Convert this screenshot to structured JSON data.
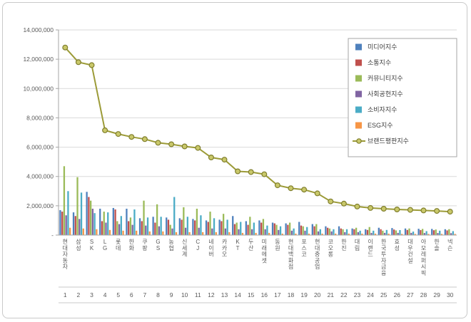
{
  "window": {
    "background": "#ffffff",
    "border_color": "#c9c9c9"
  },
  "chart_data": {
    "type": "bar+line",
    "title": "",
    "xlabel": "",
    "ylabel": "",
    "ylim": [
      0,
      14000000
    ],
    "ytick_step": 2000000,
    "zero_label": "-",
    "grid": true,
    "legend_position": "top-right",
    "axis_text_color": "#595959",
    "grid_color": "#d9d9d9",
    "axis_line_color": "#a6a6a6",
    "categories": [
      "현대자동차",
      "삼성",
      "SK",
      "LG",
      "롯데",
      "한화",
      "쿠팡",
      "GS",
      "농협",
      "신세계",
      "CJ",
      "네이버",
      "카카오",
      "KT",
      "두산",
      "미래에셋",
      "동원",
      "현대백화점",
      "포스코",
      "현대중공업",
      "코오롱",
      "한진",
      "대림",
      "이랜드",
      "한국투자금융",
      "효성",
      "대우건설",
      "아모레퍼시픽",
      "한솔",
      "넥슨"
    ],
    "ranks": [
      1,
      2,
      3,
      4,
      5,
      6,
      7,
      8,
      9,
      10,
      11,
      12,
      13,
      14,
      15,
      16,
      17,
      18,
      19,
      20,
      21,
      22,
      23,
      24,
      25,
      26,
      27,
      28,
      29,
      30
    ],
    "series": [
      {
        "name": "미디어지수",
        "color": "#4F81BD",
        "values": [
          1700000,
          1550000,
          2950000,
          1800000,
          1850000,
          1800000,
          1150000,
          1250000,
          1200000,
          1150000,
          1100000,
          1000000,
          1050000,
          1300000,
          950000,
          1000000,
          850000,
          800000,
          900000,
          750000,
          600000,
          600000,
          450000,
          400000,
          500000,
          480000,
          450000,
          430000,
          420000,
          400000
        ]
      },
      {
        "name": "소통지수",
        "color": "#C0504D",
        "values": [
          1600000,
          1300000,
          2600000,
          950000,
          1750000,
          950000,
          950000,
          850000,
          1050000,
          1050000,
          1000000,
          900000,
          950000,
          750000,
          700000,
          850000,
          800000,
          700000,
          650000,
          600000,
          500000,
          450000,
          400000,
          350000,
          400000,
          380000,
          350000,
          340000,
          330000,
          320000
        ]
      },
      {
        "name": "커뮤니티지수",
        "color": "#9BBB59",
        "values": [
          4700000,
          3950000,
          2350000,
          1600000,
          950000,
          1200000,
          2350000,
          2100000,
          700000,
          1900000,
          1800000,
          1600000,
          1450000,
          850000,
          1250000,
          1100000,
          700000,
          850000,
          600000,
          750000,
          450000,
          400000,
          500000,
          550000,
          300000,
          320000,
          450000,
          420000,
          380000,
          400000
        ]
      },
      {
        "name": "사회공헌지수",
        "color": "#8064A2",
        "values": [
          1350000,
          1100000,
          1800000,
          850000,
          750000,
          700000,
          650000,
          600000,
          450000,
          500000,
          500000,
          450000,
          450000,
          400000,
          400000,
          400000,
          350000,
          300000,
          300000,
          250000,
          250000,
          200000,
          200000,
          150000,
          150000,
          150000,
          150000,
          140000,
          140000,
          130000
        ]
      },
      {
        "name": "소비자지수",
        "color": "#4BACC6",
        "values": [
          3000000,
          2900000,
          1500000,
          1550000,
          1300000,
          1750000,
          1200000,
          1250000,
          2600000,
          1250000,
          1350000,
          1150000,
          1050000,
          900000,
          850000,
          650000,
          600000,
          450000,
          550000,
          400000,
          400000,
          400000,
          300000,
          300000,
          350000,
          340000,
          240000,
          270000,
          300000,
          270000
        ]
      },
      {
        "name": "ESG지수",
        "color": "#F79646",
        "values": [
          500000,
          450000,
          400000,
          350000,
          300000,
          300000,
          250000,
          250000,
          200000,
          200000,
          200000,
          200000,
          200000,
          150000,
          150000,
          150000,
          100000,
          100000,
          100000,
          100000,
          100000,
          100000,
          100000,
          100000,
          100000,
          80000,
          80000,
          80000,
          80000,
          80000
        ]
      }
    ],
    "line_series": {
      "name": "브랜드평판지수",
      "color": "#9C9B38",
      "marker_fill": "#C9C86A",
      "marker_stroke": "#7F7E2C",
      "values": [
        12800000,
        11800000,
        11600000,
        7150000,
        6900000,
        6700000,
        6550000,
        6300000,
        6200000,
        6050000,
        5950000,
        5300000,
        5150000,
        4350000,
        4300000,
        4150000,
        3400000,
        3200000,
        3100000,
        2850000,
        2300000,
        2150000,
        1950000,
        1850000,
        1800000,
        1750000,
        1720000,
        1680000,
        1650000,
        1600000
      ]
    },
    "legend": {
      "labels": [
        "미디어지수",
        "소통지수",
        "커뮤니티지수",
        "사회공헌지수",
        "소비자지수",
        "ESG지수",
        "브랜드평판지수"
      ]
    }
  }
}
